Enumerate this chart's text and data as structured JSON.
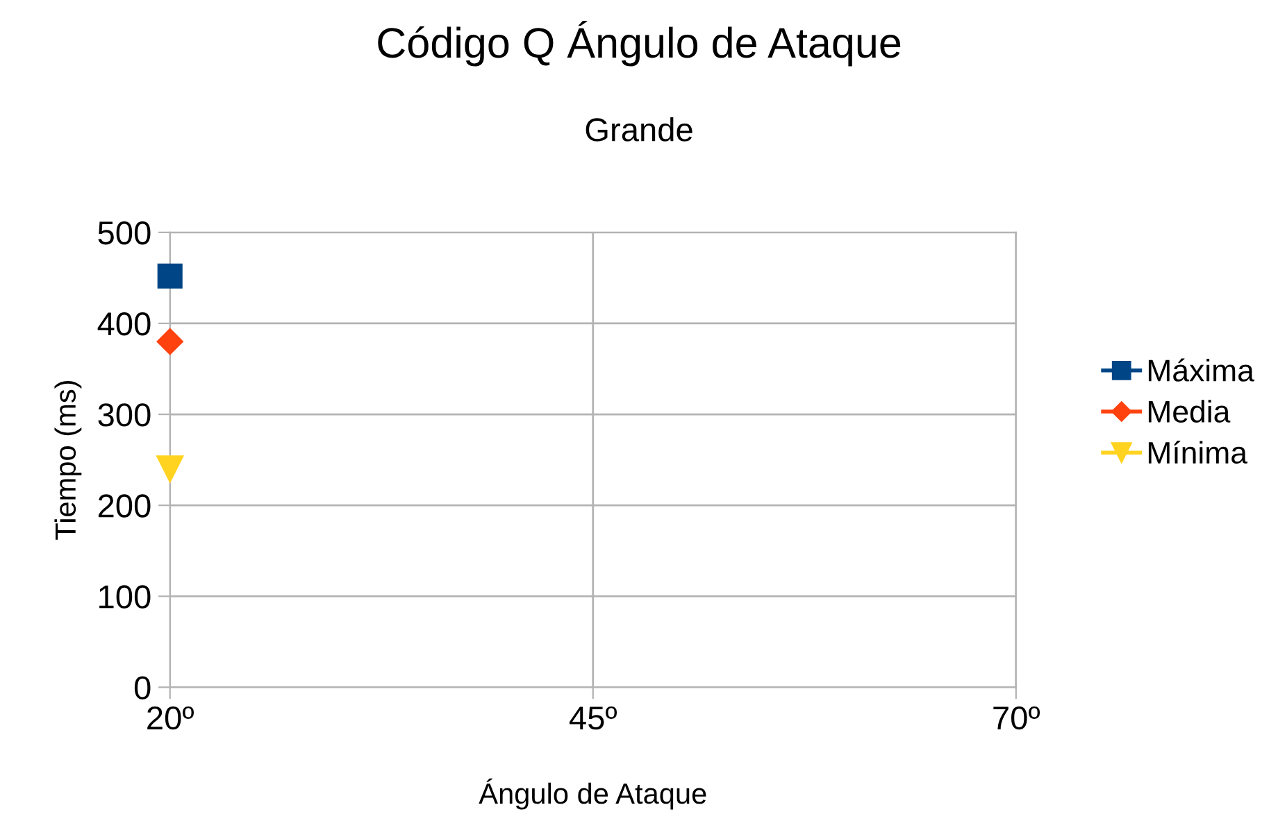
{
  "chart_data": {
    "type": "line",
    "title": "Código Q Ángulo de Ataque",
    "subtitle": "Grande",
    "xlabel": "Ángulo de Ataque",
    "ylabel": "Tiempo (ms)",
    "x": [
      20
    ],
    "series": [
      {
        "name": "Máxima",
        "color": "#004586",
        "marker": "square",
        "values": [
          452
        ]
      },
      {
        "name": "Media",
        "color": "#ff420e",
        "marker": "diamond",
        "values": [
          380
        ]
      },
      {
        "name": "Mínima",
        "color": "#ffd320",
        "marker": "triangle",
        "values": [
          240
        ]
      }
    ],
    "xlim": [
      20,
      70
    ],
    "xticks": [
      {
        "value": 20,
        "label": "20º"
      },
      {
        "value": 45,
        "label": "45º"
      },
      {
        "value": 70,
        "label": "70º"
      }
    ],
    "ylim": [
      0,
      500
    ],
    "yticks": [
      0,
      100,
      200,
      300,
      400,
      500
    ],
    "grid": true,
    "legend": "right"
  }
}
